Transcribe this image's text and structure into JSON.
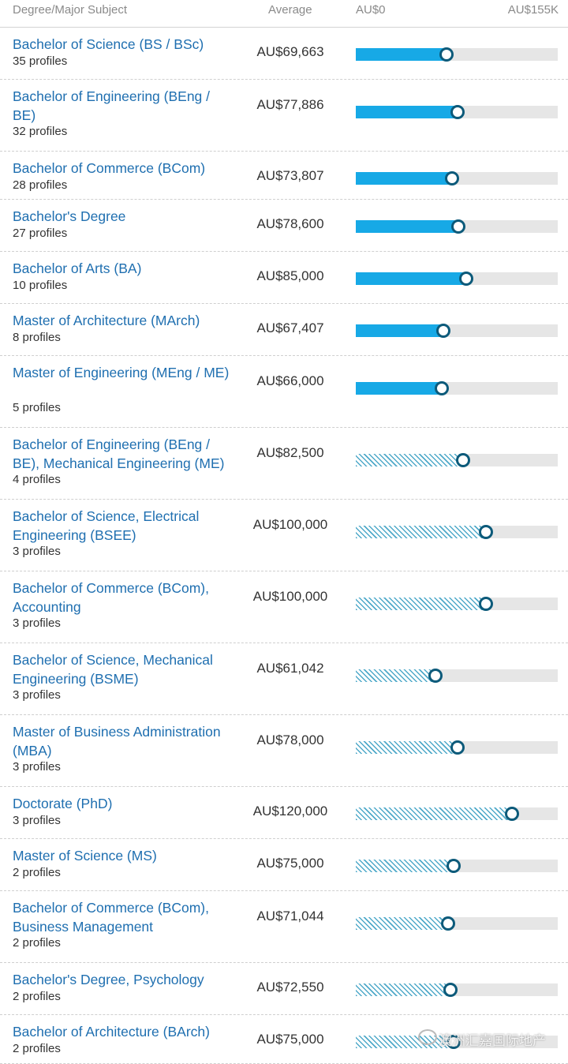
{
  "header": {
    "degree_label": "Degree/Major Subject",
    "average_label": "Average",
    "range_min_label": "AU$0",
    "range_max_label": "AU$155K"
  },
  "range": {
    "min": 0,
    "max": 155000
  },
  "colors": {
    "link": "#1f6fb0",
    "solid_bar": "#17a9e6",
    "hatch": "#4fa9c9",
    "marker": "#0c5a7a",
    "track": "#e6e6e6"
  },
  "rows": [
    {
      "name": "Bachelor of Science (BS / BSc)",
      "profiles": "35 profiles",
      "salary": "AU$69,663",
      "value": 69663,
      "style": "solid"
    },
    {
      "name": "Bachelor of Engineering (BEng / BE)",
      "profiles": "32 profiles",
      "salary": "AU$77,886",
      "value": 77886,
      "style": "solid"
    },
    {
      "name": "Bachelor of Commerce (BCom)",
      "profiles": "28 profiles",
      "salary": "AU$73,807",
      "value": 73807,
      "style": "solid"
    },
    {
      "name": "Bachelor's Degree",
      "profiles": "27 profiles",
      "salary": "AU$78,600",
      "value": 78600,
      "style": "solid"
    },
    {
      "name": "Bachelor of Arts (BA)",
      "profiles": "10 profiles",
      "salary": "AU$85,000",
      "value": 85000,
      "style": "solid"
    },
    {
      "name": "Master of Architecture (MArch)",
      "profiles": "8 profiles",
      "salary": "AU$67,407",
      "value": 67407,
      "style": "solid"
    },
    {
      "name": "Master of Engineering (MEng / ME)",
      "profiles": "5 profiles",
      "salary": "AU$66,000",
      "value": 66000,
      "style": "solid"
    },
    {
      "name": "Bachelor of Engineering (BEng / BE), Mechanical Engineering (ME)",
      "profiles": "4 profiles",
      "salary": "AU$82,500",
      "value": 82500,
      "style": "hatched"
    },
    {
      "name": "Bachelor of Science, Electrical Engineering (BSEE)",
      "profiles": "3 profiles",
      "salary": "AU$100,000",
      "value": 100000,
      "style": "hatched"
    },
    {
      "name": "Bachelor of Commerce (BCom), Accounting",
      "profiles": "3 profiles",
      "salary": "AU$100,000",
      "value": 100000,
      "style": "hatched"
    },
    {
      "name": "Bachelor of Science, Mechanical Engineering (BSME)",
      "profiles": "3 profiles",
      "salary": "AU$61,042",
      "value": 61042,
      "style": "hatched"
    },
    {
      "name": "Master of Business Administration (MBA)",
      "profiles": "3 profiles",
      "salary": "AU$78,000",
      "value": 78000,
      "style": "hatched"
    },
    {
      "name": "Doctorate (PhD)",
      "profiles": "3 profiles",
      "salary": "AU$120,000",
      "value": 120000,
      "style": "hatched"
    },
    {
      "name": "Master of Science (MS)",
      "profiles": "2 profiles",
      "salary": "AU$75,000",
      "value": 75000,
      "style": "hatched"
    },
    {
      "name": "Bachelor of Commerce (BCom), Business Management",
      "profiles": "2 profiles",
      "salary": "AU$71,044",
      "value": 71044,
      "style": "hatched"
    },
    {
      "name": "Bachelor's Degree, Psychology",
      "profiles": "2 profiles",
      "salary": "AU$72,550",
      "value": 72550,
      "style": "hatched"
    },
    {
      "name": "Bachelor of Architecture (BArch)",
      "profiles": "2 profiles",
      "salary": "AU$75,000",
      "value": 75000,
      "style": "hatched"
    }
  ],
  "watermark": {
    "text": "澳洲汇嘉国际地产",
    "icon": "wechat-icon"
  }
}
